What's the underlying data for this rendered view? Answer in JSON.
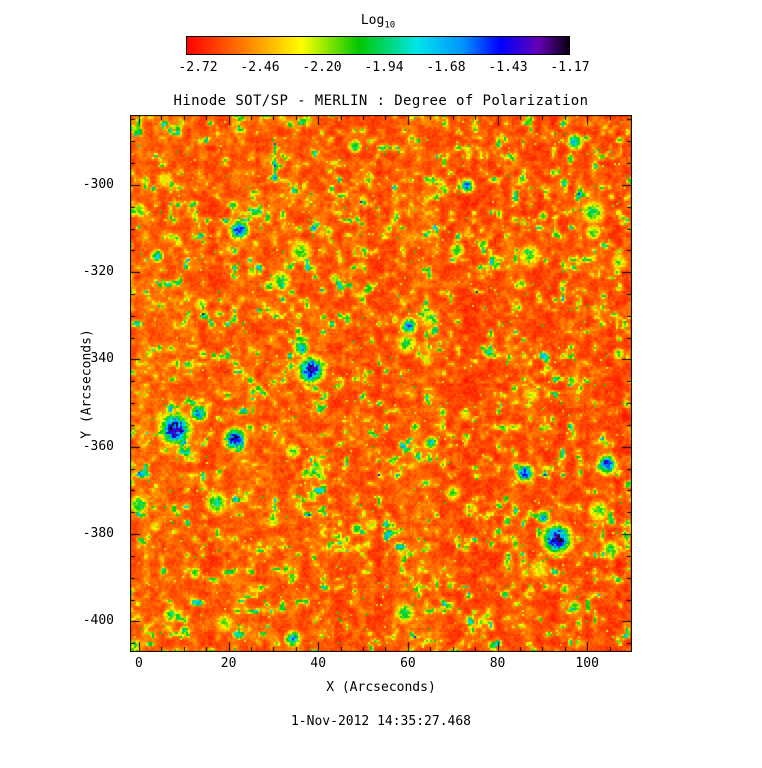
{
  "figure": {
    "caption": "1-Nov-2012 14:35:27.468"
  },
  "colorbar": {
    "label_main": "Log",
    "label_sub": "10",
    "tick_labels": [
      "-2.72",
      "-2.46",
      "-2.20",
      "-1.94",
      "-1.68",
      "-1.43",
      "-1.17"
    ]
  },
  "chart_data": {
    "type": "heatmap",
    "title": "Hinode SOT/SP - MERLIN : Degree of Polarization",
    "xlabel": "X (Arcseconds)",
    "ylabel": "Y (Arcseconds)",
    "x_ticks": [
      0,
      20,
      40,
      60,
      80,
      100
    ],
    "y_ticks": [
      -300,
      -320,
      -340,
      -360,
      -380,
      -400
    ],
    "x_minor_step": 5,
    "y_minor_step": 5,
    "xlim": [
      -2,
      110
    ],
    "ylim": [
      -407,
      -284
    ],
    "grid": false,
    "legend": "none",
    "colorbar": {
      "label": "Log10",
      "position": "top",
      "ticks": [
        -2.72,
        -2.46,
        -2.2,
        -1.94,
        -1.68,
        -1.43,
        -1.17
      ],
      "range": [
        -2.77,
        -1.17
      ],
      "colormap_stops": [
        [
          0.0,
          "#ff0000"
        ],
        [
          0.15,
          "#ff7d00"
        ],
        [
          0.3,
          "#ffff00"
        ],
        [
          0.45,
          "#00c800"
        ],
        [
          0.6,
          "#00e6e6"
        ],
        [
          0.72,
          "#0096ff"
        ],
        [
          0.82,
          "#0000ff"
        ],
        [
          0.92,
          "#6400b4"
        ],
        [
          1.0,
          "#0a0014"
        ]
      ]
    },
    "field_description": "Quiet-Sun degree-of-polarization map: dominant red/orange background (log10 DoP ~ -2.7 to -2.4) with a granular yellow-green speckle network (~ -2.2) and sparse compact cyan/blue/dark patches (~ -1.7 to -1.2) marking magnetic elements; faint vertical scan striping",
    "features": [
      {
        "x": 8,
        "y": -356,
        "r": 3.5,
        "dop_log10": -1.25
      },
      {
        "x": 13,
        "y": -352,
        "r": 2.0,
        "dop_log10": -1.57
      },
      {
        "x": 22,
        "y": -310,
        "r": 2.2,
        "dop_log10": -1.41
      },
      {
        "x": 21,
        "y": -358,
        "r": 2.5,
        "dop_log10": -1.36
      },
      {
        "x": 38,
        "y": -342,
        "r": 3.0,
        "dop_log10": -1.25
      },
      {
        "x": 36,
        "y": -337,
        "r": 1.8,
        "dop_log10": -1.65
      },
      {
        "x": 60,
        "y": -332,
        "r": 1.8,
        "dop_log10": -1.49
      },
      {
        "x": 93,
        "y": -381,
        "r": 3.2,
        "dop_log10": -1.22
      },
      {
        "x": 90,
        "y": -376,
        "r": 1.6,
        "dop_log10": -1.65
      },
      {
        "x": 86,
        "y": -366,
        "r": 2.0,
        "dop_log10": -1.41
      },
      {
        "x": 104,
        "y": -364,
        "r": 2.2,
        "dop_log10": -1.41
      },
      {
        "x": 73,
        "y": -300,
        "r": 1.6,
        "dop_log10": -1.57
      },
      {
        "x": 97,
        "y": -290,
        "r": 1.8,
        "dop_log10": -1.65
      },
      {
        "x": 34,
        "y": -404,
        "r": 1.8,
        "dop_log10": -1.62
      },
      {
        "x": 4,
        "y": -316,
        "r": 1.5,
        "dop_log10": -1.73
      },
      {
        "x": 48,
        "y": -291,
        "r": 1.5,
        "dop_log10": -1.81
      },
      {
        "x": 65,
        "y": -359,
        "r": 1.5,
        "dop_log10": -1.78
      },
      {
        "x": 78,
        "y": -338,
        "r": 1.4,
        "dop_log10": -1.81
      }
    ]
  }
}
